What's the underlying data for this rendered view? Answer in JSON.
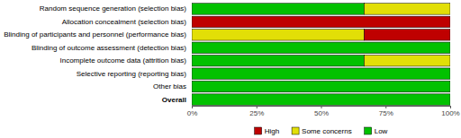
{
  "chart_data": {
    "type": "bar",
    "orientation": "horizontal",
    "stacked": true,
    "legend": "bottom",
    "categories": [
      "Random sequence generation (selection bias)",
      "Allocation concealment (selection bias)",
      "Blinding of participants and personnel (performance bias)",
      "Blinding of outcome assessment (detection bias)",
      "Incomplete outcome data (attrition bias)",
      "Selective reporting (reporting bias)",
      "Other bias",
      "Overall"
    ],
    "series": [
      {
        "name": "Low",
        "color": "#02C100",
        "values": [
          66.7,
          0,
          0,
          100,
          66.7,
          100,
          100,
          100
        ]
      },
      {
        "name": "Some concerns",
        "color": "#E2DF07",
        "values": [
          33.3,
          0,
          66.7,
          0,
          33.3,
          0,
          0,
          0
        ]
      },
      {
        "name": "High",
        "color": "#BF0000",
        "values": [
          0,
          100,
          33.3,
          0,
          0,
          0,
          0,
          0
        ]
      }
    ],
    "xlim": [
      0,
      100
    ],
    "xticks": [
      {
        "value": 0,
        "label": "0%"
      },
      {
        "value": 25,
        "label": "25%"
      },
      {
        "value": 50,
        "label": "50%"
      },
      {
        "value": 75,
        "label": "75%"
      },
      {
        "value": 100,
        "label": "100%"
      }
    ]
  }
}
